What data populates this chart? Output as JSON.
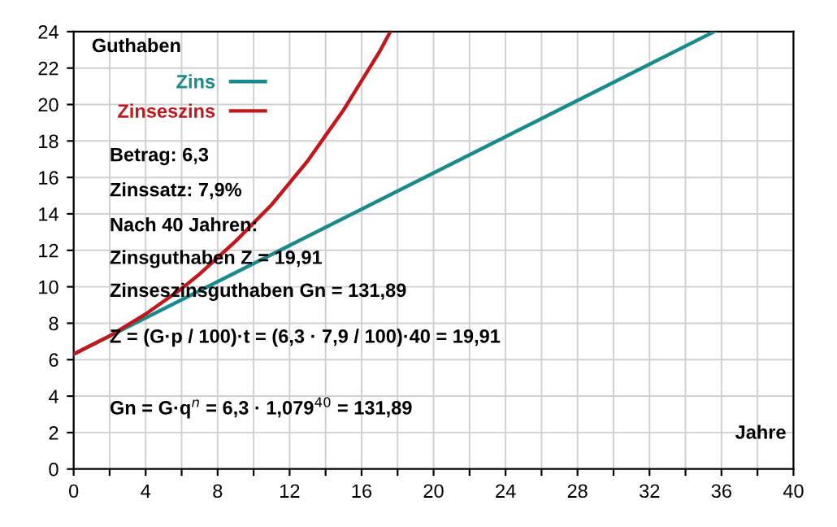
{
  "chart_data": {
    "type": "line",
    "xlabel": "Jahre",
    "ylabel": "Guthaben",
    "series": [
      {
        "name": "Zins",
        "color": "#1a8a8a",
        "x": [
          0,
          35.6
        ],
        "values": [
          6.3,
          24.0
        ]
      },
      {
        "name": "Zinseszins",
        "color": "#c0181c",
        "x": [
          0,
          1,
          2,
          3,
          4,
          5,
          6,
          7,
          8,
          9,
          10,
          11,
          12,
          13,
          14,
          15,
          16,
          17,
          17.6
        ],
        "values": [
          6.3,
          6.8,
          7.3,
          7.9,
          8.5,
          9.2,
          9.9,
          10.7,
          11.6,
          12.5,
          13.5,
          14.5,
          15.7,
          16.9,
          18.3,
          19.7,
          21.3,
          22.9,
          24.0
        ]
      }
    ],
    "xlim": [
      0,
      40
    ],
    "ylim": [
      0,
      24
    ],
    "xticks": [
      0,
      {
        "value": 2,
        "label": null
      },
      4,
      {
        "value": 6,
        "label": null
      },
      8,
      {
        "value": 10,
        "label": null
      },
      12,
      {
        "value": 14,
        "label": null
      },
      16,
      {
        "value": 18,
        "label": null
      },
      20,
      {
        "value": 22,
        "label": null
      },
      24,
      {
        "value": 26,
        "label": null
      },
      28,
      {
        "value": 30,
        "label": null
      },
      32,
      {
        "value": 34,
        "label": null
      },
      36,
      {
        "value": 38,
        "label": null
      },
      40
    ],
    "yticks": [
      0,
      2,
      4,
      6,
      8,
      10,
      12,
      14,
      16,
      18,
      20,
      22,
      24
    ],
    "grid": true,
    "legend": "top left",
    "marker": "none",
    "line_style": "solid",
    "annotations": [
      "Betrag: 6,3",
      "Zinssatz: 7,9%",
      "Nach 40 Jahren:",
      "Zinsguthaben Z = 19,91",
      "Zinseszinsguthaben Gn = 131,89",
      "Z = (G·p / 100)·t = (6,3 · 7,9 / 100)·40 = 19,91",
      "Gn = G·q$^{n}$ = 6,3 · 1,079$^{40}$ = 131,89"
    ]
  }
}
